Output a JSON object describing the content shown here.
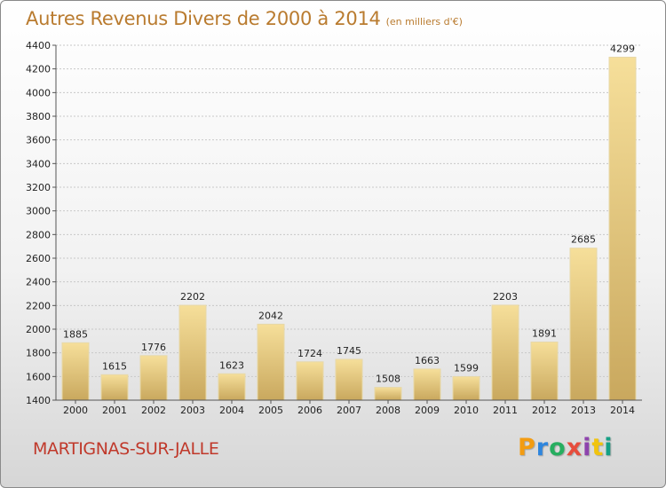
{
  "header": {
    "title": "Autres Revenus Divers de 2000 à 2014",
    "unit": "(en milliers d'€)"
  },
  "footer": {
    "city": "MARTIGNAS-SUR-JALLE"
  },
  "logo": {
    "letters": [
      "P",
      "r",
      "o",
      "x",
      "i",
      "t",
      "i"
    ],
    "colors": [
      "#f39c12",
      "#2e86de",
      "#27ae60",
      "#e74c3c",
      "#8e44ad",
      "#f1c40f",
      "#16a085"
    ]
  },
  "chart_data": {
    "type": "bar",
    "title": "Autres Revenus Divers de 2000 à 2014",
    "subtitle": "(en milliers d'€)",
    "categories": [
      "2000",
      "2001",
      "2002",
      "2003",
      "2004",
      "2005",
      "2006",
      "2007",
      "2008",
      "2009",
      "2010",
      "2011",
      "2012",
      "2013",
      "2014"
    ],
    "values": [
      1885,
      1615,
      1776,
      2202,
      1623,
      2042,
      1724,
      1745,
      1508,
      1663,
      1599,
      2203,
      1891,
      2685,
      4299
    ],
    "ylim": [
      1400,
      4400
    ],
    "yticks": [
      1400,
      1600,
      1800,
      2000,
      2200,
      2400,
      2600,
      2800,
      3000,
      3200,
      3400,
      3600,
      3800,
      4000,
      4200,
      4400
    ],
    "grid": true,
    "bar_color": "#e9cf86"
  }
}
